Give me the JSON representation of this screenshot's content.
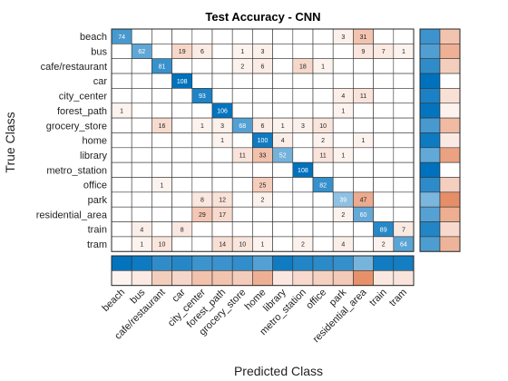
{
  "chart_data": {
    "type": "heatmap",
    "title": "Test Accuracy - CNN",
    "xlabel": "Predicted Class",
    "ylabel": "True Class",
    "categories": [
      "beach",
      "bus",
      "cafe/restaurant",
      "car",
      "city_center",
      "forest_path",
      "grocery_store",
      "home",
      "library",
      "metro_station",
      "office",
      "park",
      "residential_area",
      "train",
      "tram"
    ],
    "matrix": [
      [
        74,
        0,
        0,
        0,
        0,
        0,
        0,
        0,
        0,
        0,
        0,
        3,
        31,
        0,
        0
      ],
      [
        0,
        62,
        0,
        19,
        6,
        0,
        1,
        3,
        0,
        0,
        0,
        0,
        9,
        7,
        1
      ],
      [
        0,
        0,
        81,
        0,
        0,
        0,
        2,
        6,
        0,
        18,
        1,
        0,
        0,
        0,
        0
      ],
      [
        0,
        0,
        0,
        108,
        0,
        0,
        0,
        0,
        0,
        0,
        0,
        0,
        0,
        0,
        0
      ],
      [
        0,
        0,
        0,
        0,
        93,
        0,
        0,
        0,
        0,
        0,
        0,
        4,
        11,
        0,
        0
      ],
      [
        1,
        0,
        0,
        0,
        0,
        106,
        0,
        0,
        0,
        0,
        0,
        1,
        0,
        0,
        0
      ],
      [
        0,
        0,
        16,
        0,
        1,
        3,
        68,
        6,
        1,
        3,
        10,
        0,
        0,
        0,
        0
      ],
      [
        0,
        0,
        0,
        0,
        0,
        1,
        0,
        100,
        4,
        0,
        2,
        0,
        1,
        0,
        0
      ],
      [
        0,
        0,
        0,
        0,
        0,
        0,
        11,
        33,
        52,
        0,
        11,
        1,
        0,
        0,
        0
      ],
      [
        0,
        0,
        0,
        0,
        0,
        0,
        0,
        0,
        0,
        108,
        0,
        0,
        0,
        0,
        0
      ],
      [
        0,
        0,
        1,
        0,
        0,
        0,
        0,
        25,
        0,
        0,
        82,
        0,
        0,
        0,
        0
      ],
      [
        0,
        0,
        0,
        0,
        8,
        12,
        0,
        2,
        0,
        0,
        0,
        39,
        47,
        0,
        0
      ],
      [
        0,
        0,
        0,
        0,
        29,
        17,
        0,
        0,
        0,
        0,
        0,
        2,
        60,
        0,
        0
      ],
      [
        0,
        4,
        0,
        8,
        0,
        0,
        0,
        0,
        0,
        0,
        0,
        0,
        0,
        89,
        7
      ],
      [
        0,
        1,
        10,
        0,
        0,
        14,
        10,
        1,
        0,
        2,
        0,
        4,
        0,
        2,
        64
      ]
    ],
    "colors": {
      "correct": "#0072BD",
      "error": "#D95319",
      "grid": "#333333"
    }
  }
}
